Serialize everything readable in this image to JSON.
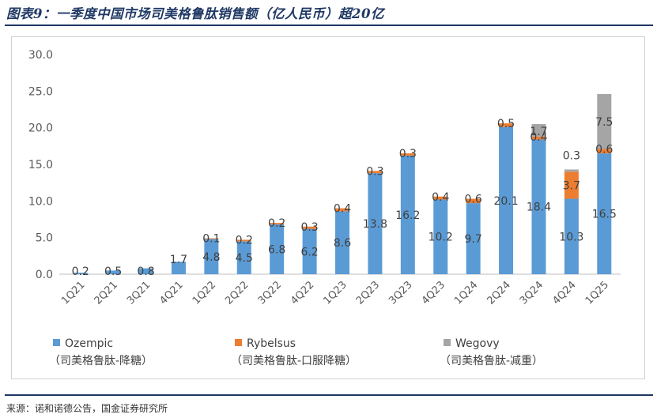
{
  "title": "图表9：一季度中国市场司美格鲁肽销售额（亿人民币）超20亿",
  "source": "来源：诺和诺德公告，国金证券研究所",
  "chart_data": {
    "type": "bar",
    "stacked": true,
    "categories": [
      "1Q21",
      "2Q21",
      "3Q21",
      "4Q21",
      "1Q22",
      "2Q22",
      "3Q22",
      "4Q22",
      "1Q23",
      "2Q23",
      "3Q23",
      "4Q23",
      "1Q24",
      "2Q24",
      "3Q24",
      "4Q24",
      "1Q25"
    ],
    "series": [
      {
        "name": "Ozempic",
        "sublabel": "（司美格鲁肽-降糖）",
        "color": "#5b9bd5",
        "values": [
          0.2,
          0.5,
          0.8,
          1.7,
          4.8,
          4.5,
          6.8,
          6.2,
          8.6,
          13.8,
          16.2,
          10.2,
          9.7,
          20.1,
          18.4,
          10.3,
          16.5
        ],
        "labels": [
          "0.2",
          "0.5",
          "0.8",
          "1.7",
          "4.8",
          "4.5",
          "6.8",
          "6.2",
          "8.6",
          "13.8",
          "16.2",
          "10.2",
          "9.7",
          "20.1",
          "18.4",
          "10.3",
          "16.5"
        ]
      },
      {
        "name": "Rybelsus",
        "sublabel": "（司美格鲁肽-口服降糖）",
        "color": "#ed7d31",
        "values": [
          0,
          0,
          0,
          0,
          0.1,
          0.2,
          0.2,
          0.3,
          0.4,
          0.3,
          0.3,
          0.4,
          0.6,
          0.5,
          0.4,
          3.7,
          0.6
        ],
        "labels": [
          "",
          "",
          "",
          "",
          "0.1",
          "0.2",
          "0.2",
          "0.3",
          "0.4",
          "0.3",
          "0.3",
          "0.4",
          "0.6",
          "0.5",
          "0.4",
          "3.7",
          "0.6"
        ]
      },
      {
        "name": "Wegovy",
        "sublabel": "（司美格鲁肽-减重）",
        "color": "#a5a5a5",
        "values": [
          0,
          0,
          0,
          0,
          0,
          0,
          0,
          0,
          0,
          0,
          0,
          0,
          0,
          0,
          1.7,
          0.3,
          7.5
        ],
        "labels": [
          "",
          "",
          "",
          "",
          "",
          "",
          "",
          "",
          "",
          "",
          "",
          "",
          "",
          "",
          "1.7",
          "0.3",
          "7.5"
        ]
      }
    ],
    "ylim": [
      0,
      30
    ],
    "yticks": [
      "0.0",
      "5.0",
      "10.0",
      "15.0",
      "20.0",
      "25.0",
      "30.0"
    ],
    "grid": false,
    "legend": "bottom"
  }
}
